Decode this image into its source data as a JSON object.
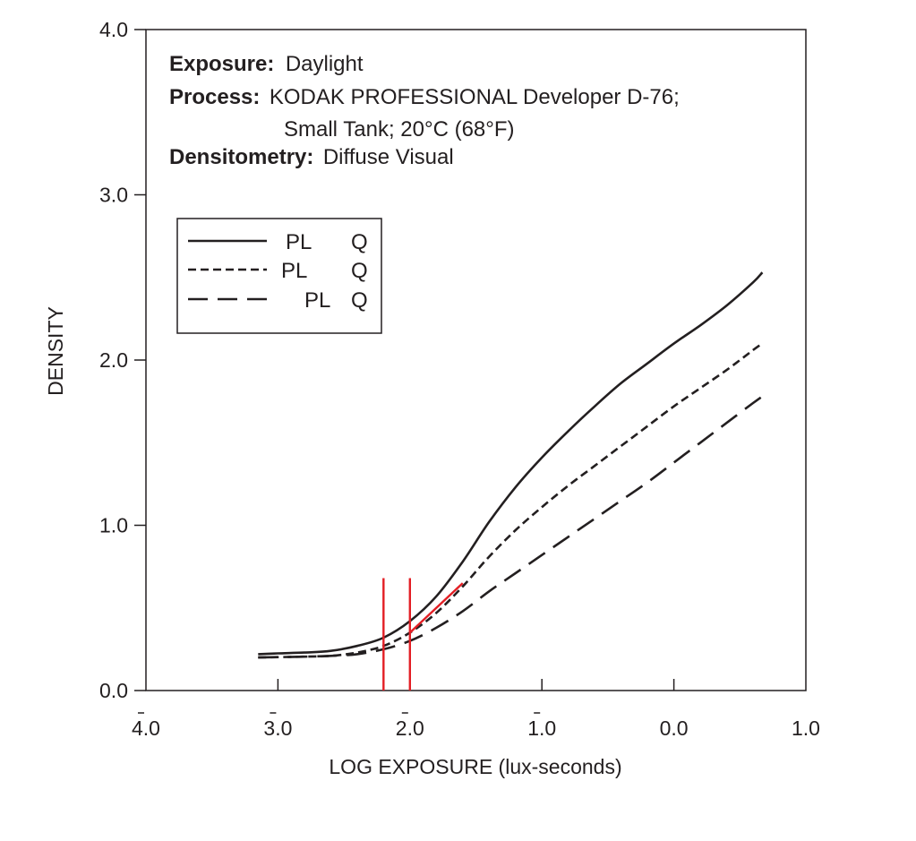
{
  "chart_data": {
    "type": "line",
    "xlabel": "LOG EXPOSURE (lux-seconds)",
    "ylabel": "DENSITY",
    "xlim": [
      -4.0,
      1.0
    ],
    "ylim": [
      0.0,
      4.0
    ],
    "x_ticks": [
      {
        "value": -4,
        "label": "4.0",
        "bar": true
      },
      {
        "value": -3,
        "label": "3.0",
        "bar": true
      },
      {
        "value": -2,
        "label": "2.0",
        "bar": true
      },
      {
        "value": -1,
        "label": "1.0",
        "bar": true
      },
      {
        "value": 0,
        "label": "0.0",
        "bar": false
      },
      {
        "value": 1,
        "label": "1.0",
        "bar": false
      }
    ],
    "y_ticks": [
      {
        "value": 0,
        "label": "0.0"
      },
      {
        "value": 1,
        "label": "1.0"
      },
      {
        "value": 2,
        "label": "2.0"
      },
      {
        "value": 3,
        "label": "3.0"
      },
      {
        "value": 4,
        "label": "4.0"
      }
    ],
    "grid": false,
    "info": {
      "exposure_label": "Exposure:",
      "exposure_value": "Daylight",
      "process_label": "Process:",
      "process_value_1": "KODAK PROFESSIONAL Developer D-76;",
      "process_value_2": "Small Tank; 20°C (68°F)",
      "densitometry_label": "Densitometry:",
      "densitometry_value": "Diffuse Visual"
    },
    "legend": {
      "placement": "top-left",
      "entries": [
        {
          "label": "PL",
          "suffix": "Q",
          "style": "solid"
        },
        {
          "label": "PL",
          "suffix": "Q",
          "style": "short-dash"
        },
        {
          "label": "PL",
          "suffix": "Q",
          "style": "long-dash"
        }
      ]
    },
    "series": [
      {
        "style": "solid",
        "color": "#231f20",
        "points": [
          [
            -3.15,
            0.22
          ],
          [
            -3.0,
            0.225
          ],
          [
            -2.8,
            0.23
          ],
          [
            -2.6,
            0.24
          ],
          [
            -2.4,
            0.27
          ],
          [
            -2.2,
            0.32
          ],
          [
            -2.0,
            0.42
          ],
          [
            -1.8,
            0.57
          ],
          [
            -1.6,
            0.78
          ],
          [
            -1.4,
            1.02
          ],
          [
            -1.2,
            1.23
          ],
          [
            -1.0,
            1.41
          ],
          [
            -0.8,
            1.57
          ],
          [
            -0.6,
            1.72
          ],
          [
            -0.4,
            1.86
          ],
          [
            -0.2,
            1.98
          ],
          [
            0.0,
            2.1
          ],
          [
            0.2,
            2.21
          ],
          [
            0.4,
            2.33
          ],
          [
            0.6,
            2.47
          ],
          [
            0.67,
            2.53
          ]
        ]
      },
      {
        "style": "short-dash",
        "color": "#231f20",
        "points": [
          [
            -3.15,
            0.2
          ],
          [
            -2.8,
            0.205
          ],
          [
            -2.6,
            0.21
          ],
          [
            -2.4,
            0.23
          ],
          [
            -2.2,
            0.27
          ],
          [
            -2.0,
            0.35
          ],
          [
            -1.8,
            0.47
          ],
          [
            -1.6,
            0.63
          ],
          [
            -1.4,
            0.81
          ],
          [
            -1.2,
            0.97
          ],
          [
            -1.0,
            1.11
          ],
          [
            -0.8,
            1.24
          ],
          [
            -0.6,
            1.36
          ],
          [
            -0.4,
            1.48
          ],
          [
            -0.2,
            1.6
          ],
          [
            0.0,
            1.72
          ],
          [
            0.2,
            1.83
          ],
          [
            0.4,
            1.94
          ],
          [
            0.6,
            2.06
          ],
          [
            0.67,
            2.1
          ]
        ]
      },
      {
        "style": "long-dash",
        "color": "#231f20",
        "points": [
          [
            -3.15,
            0.2
          ],
          [
            -2.8,
            0.205
          ],
          [
            -2.6,
            0.21
          ],
          [
            -2.4,
            0.22
          ],
          [
            -2.2,
            0.25
          ],
          [
            -2.0,
            0.3
          ],
          [
            -1.8,
            0.38
          ],
          [
            -1.6,
            0.48
          ],
          [
            -1.4,
            0.6
          ],
          [
            -1.2,
            0.71
          ],
          [
            -1.0,
            0.82
          ],
          [
            -0.8,
            0.93
          ],
          [
            -0.6,
            1.04
          ],
          [
            -0.4,
            1.15
          ],
          [
            -0.2,
            1.26
          ],
          [
            0.0,
            1.38
          ],
          [
            0.2,
            1.5
          ],
          [
            0.4,
            1.62
          ],
          [
            0.6,
            1.74
          ],
          [
            0.67,
            1.78
          ]
        ]
      }
    ],
    "annotations": {
      "color": "#e31e24",
      "vertical_lines": [
        {
          "x": -2.2,
          "y_range": [
            0.0,
            0.68
          ]
        },
        {
          "x": -2.0,
          "y_range": [
            0.0,
            0.68
          ]
        }
      ],
      "segment": {
        "from": [
          -2.0,
          0.35
        ],
        "to": [
          -1.6,
          0.65
        ]
      }
    }
  }
}
